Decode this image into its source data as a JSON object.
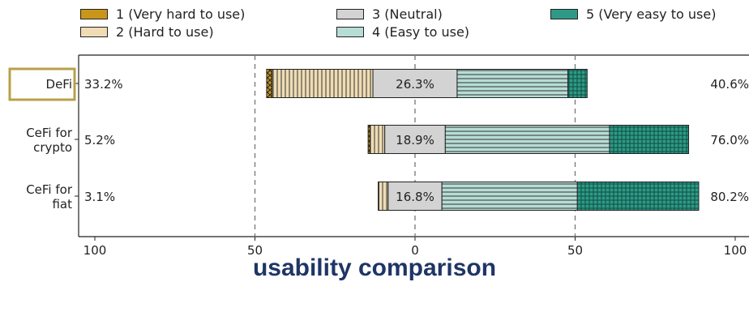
{
  "chart_data": {
    "type": "bar",
    "orientation": "horizontal-diverging",
    "legend": [
      {
        "key": "1",
        "label": "1 (Very hard to use)",
        "color": "#c9961a",
        "pattern": "cross"
      },
      {
        "key": "2",
        "label": "2 (Hard to use)",
        "color": "#efdcb4",
        "pattern": "vertical"
      },
      {
        "key": "3",
        "label": "3 (Neutral)",
        "color": "#d3d3d3",
        "pattern": "none"
      },
      {
        "key": "4",
        "label": "4 (Easy to use)",
        "color": "#b7dcd6",
        "pattern": "horizontal"
      },
      {
        "key": "5",
        "label": "5 (Very easy to use)",
        "color": "#2e9a86",
        "pattern": "grid"
      }
    ],
    "categories": [
      "DeFi",
      "CeFi for\ncrypto",
      "CeFi for\nfiat"
    ],
    "segments": [
      {
        "v1": 1.7,
        "v2": 31.5,
        "v3": 26.3,
        "v4": 34.6,
        "v5": 6.0
      },
      {
        "v1": 0.6,
        "v2": 4.6,
        "v3": 18.9,
        "v4": 51.3,
        "v5": 24.7
      },
      {
        "v1": 0.2,
        "v2": 2.9,
        "v3": 16.8,
        "v4": 42.3,
        "v5": 37.9
      }
    ],
    "left_labels": [
      "33.2%",
      "5.2%",
      "3.1%"
    ],
    "neutral_labels": [
      "26.3%",
      "18.9%",
      "16.8%"
    ],
    "right_labels": [
      "40.6%",
      "76.0%",
      "80.2%"
    ],
    "xticks": [
      "100",
      "50",
      "0",
      "50",
      "100"
    ],
    "xlim": [
      -100,
      100
    ],
    "grid": "vertical dashed at -50, 0, 50",
    "highlight": "DeFi",
    "caption": "usability comparison"
  },
  "colors": {
    "highlight_box": "#b8a04a",
    "caption": "#1f3566"
  }
}
